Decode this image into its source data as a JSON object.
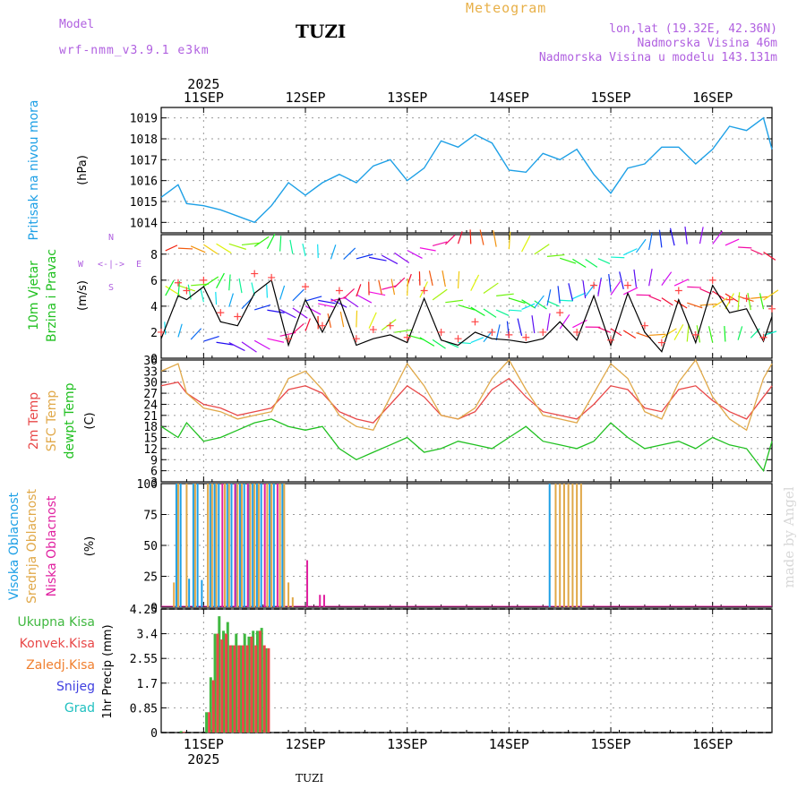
{
  "header": {
    "model_label": "Model",
    "model_name": "wrf-nmm_v3.9.1 e3km",
    "station": "TUZI",
    "product": "Meteogram",
    "coords": "lon,lat (19.32E, 42.36N)",
    "elevation": "Nadmorska Visina 46m",
    "model_elevation": "Nadmorska Visina u modelu 143.131m",
    "footer_station": "TUZI",
    "watermark": "made by Angel"
  },
  "colors": {
    "pressure": "#1ea0e6",
    "wind_speed": "#000000",
    "gust_marker": "#ff4444",
    "t2m": "#e84848",
    "tsfc": "#e0a848",
    "dewpt": "#20c020",
    "cloud_high": "#1ea0e6",
    "cloud_mid": "#e0a848",
    "cloud_low": "#e020a0",
    "precip_total": "#40b840",
    "precip_conv": "#e84848",
    "freezing": "#f08030",
    "snow": "#4040e0",
    "hail": "#20c0c0",
    "title_purple": "#b060e0"
  },
  "chart_data": [
    {
      "type": "line",
      "name": "pressure",
      "ylabel": "Pritisak na nivou mora",
      "unit": "(hPa)",
      "ylim": [
        1013.5,
        1019.5
      ],
      "yticks": [
        1014,
        1015,
        1016,
        1017,
        1018,
        1019
      ],
      "xticks": [
        "11SEP",
        "12SEP",
        "13SEP",
        "14SEP",
        "15SEP",
        "16SEP"
      ],
      "top_year": "2025",
      "x": [
        0,
        4,
        6,
        10,
        14,
        18,
        22,
        26,
        30,
        34,
        38,
        42,
        46,
        50,
        54,
        58,
        62,
        66,
        70,
        74,
        78,
        82,
        86,
        90,
        94,
        98,
        102,
        106,
        110,
        114,
        118,
        122,
        126,
        130,
        134,
        138,
        142,
        144
      ],
      "values": [
        1015.2,
        1015.8,
        1014.9,
        1014.8,
        1014.6,
        1014.3,
        1014.0,
        1014.8,
        1015.9,
        1015.3,
        1015.9,
        1016.3,
        1015.9,
        1016.7,
        1017.0,
        1016.0,
        1016.6,
        1017.9,
        1017.6,
        1018.2,
        1017.8,
        1016.5,
        1016.4,
        1017.3,
        1017.0,
        1017.5,
        1016.3,
        1015.4,
        1016.6,
        1016.8,
        1017.6,
        1017.6,
        1016.8,
        1017.5,
        1018.6,
        1018.4,
        1019.0,
        1017.5
      ]
    },
    {
      "type": "line",
      "name": "wind",
      "ylabel": "10m Vjetar Brzina i Pravac",
      "unit": "(m/s)",
      "compass": "N",
      "compass_w": "W",
      "compass_e": "E",
      "compass_s": "S",
      "arrows": "<-|->",
      "ylim": [
        0,
        9.5
      ],
      "yticks": [
        0,
        2,
        4,
        6,
        8
      ],
      "x": [
        0,
        4,
        6,
        10,
        14,
        18,
        22,
        26,
        30,
        34,
        38,
        42,
        46,
        50,
        54,
        58,
        62,
        66,
        70,
        74,
        78,
        82,
        86,
        90,
        94,
        98,
        102,
        106,
        110,
        114,
        118,
        122,
        126,
        130,
        134,
        138,
        142,
        144
      ],
      "values": [
        1.5,
        4.8,
        4.5,
        5.5,
        2.8,
        2.5,
        5.0,
        6.0,
        1.0,
        4.5,
        2.0,
        4.6,
        1.0,
        1.5,
        1.8,
        1.2,
        4.6,
        1.4,
        1.0,
        2.0,
        1.5,
        1.4,
        1.2,
        1.5,
        2.8,
        1.4,
        4.8,
        1.0,
        5.0,
        2.0,
        0.5,
        4.5,
        1.2,
        5.6,
        3.5,
        3.8,
        1.3,
        3.2
      ],
      "gusts": [
        2.0,
        5.8,
        5.2,
        6.0,
        3.5,
        3.2,
        6.5,
        6.2,
        1.5,
        5.5,
        2.5,
        5.2,
        1.5,
        2.2,
        2.5,
        1.6,
        5.2,
        2.0,
        1.5,
        2.8,
        2.0,
        1.8,
        1.6,
        2.0,
        3.5,
        2.0,
        5.6,
        1.4,
        5.6,
        2.5,
        1.2,
        5.2,
        1.8,
        6.0,
        4.5,
        4.6,
        1.6,
        3.8
      ]
    },
    {
      "type": "line",
      "name": "temperature",
      "ylabel_1": "2m Temp",
      "ylabel_2": "SFC Temp",
      "ylabel_3": "dewpt Temp",
      "unit": "(C)",
      "ylim": [
        3,
        36
      ],
      "yticks": [
        3,
        6,
        9,
        12,
        15,
        18,
        21,
        24,
        27,
        30,
        33,
        36
      ],
      "x": [
        0,
        4,
        6,
        10,
        14,
        18,
        22,
        26,
        30,
        34,
        38,
        42,
        46,
        50,
        54,
        58,
        62,
        66,
        70,
        74,
        78,
        82,
        86,
        90,
        94,
        98,
        102,
        106,
        110,
        114,
        118,
        122,
        126,
        130,
        134,
        138,
        142,
        144
      ],
      "series": [
        {
          "name": "2m Temp",
          "values": [
            29,
            30,
            27,
            24,
            23,
            21,
            22,
            23,
            28,
            29,
            27,
            22,
            20,
            19,
            24,
            29,
            26,
            21,
            20,
            22,
            28,
            31,
            26,
            22,
            21,
            20,
            24,
            29,
            28,
            23,
            22,
            28,
            29,
            25,
            22,
            20,
            26,
            29
          ]
        },
        {
          "name": "SFC Temp",
          "values": [
            33,
            35,
            27,
            23,
            22,
            20,
            21,
            22,
            31,
            33,
            28,
            21,
            18,
            17,
            26,
            35,
            29,
            21,
            20,
            23,
            31,
            36,
            28,
            21,
            20,
            19,
            27,
            35,
            31,
            22,
            20,
            30,
            36,
            26,
            20,
            17,
            31,
            35
          ]
        },
        {
          "name": "dewpt Temp",
          "values": [
            18,
            15,
            19,
            14,
            15,
            17,
            19,
            20,
            18,
            17,
            18,
            12,
            9,
            11,
            13,
            15,
            11,
            12,
            14,
            13,
            12,
            15,
            18,
            14,
            13,
            12,
            14,
            19,
            15,
            12,
            13,
            14,
            12,
            15,
            13,
            12,
            6,
            14
          ]
        }
      ]
    },
    {
      "type": "bar",
      "name": "clouds",
      "ylabel_1": "Visoka Oblacnost",
      "ylabel_2": "Srednja Oblacnost",
      "ylabel_3": "Niska Oblacnost",
      "unit": "(%)",
      "ylim": [
        0,
        100
      ],
      "yticks": [
        0,
        25,
        50,
        75,
        100
      ],
      "x": [
        3,
        4,
        5,
        6,
        7,
        8,
        9,
        10,
        11,
        12,
        13,
        14,
        15,
        16,
        17,
        18,
        19,
        20,
        21,
        22,
        23,
        24,
        25,
        26,
        27,
        28,
        29,
        30,
        31,
        34,
        37,
        38,
        92,
        93,
        94,
        95,
        96,
        97,
        98,
        99
      ],
      "series": [
        {
          "name": "Visoka Oblacnost",
          "values": [
            0,
            100,
            100,
            0,
            23,
            100,
            100,
            22,
            0,
            100,
            100,
            100,
            0,
            100,
            100,
            100,
            100,
            100,
            100,
            100,
            100,
            100,
            0,
            100,
            100,
            0,
            100,
            0,
            0,
            0,
            0,
            0,
            100,
            0,
            0,
            0,
            0,
            0,
            0,
            0
          ]
        },
        {
          "name": "Srednja Oblacnost",
          "values": [
            20,
            100,
            0,
            100,
            0,
            100,
            0,
            0,
            100,
            100,
            100,
            0,
            100,
            100,
            0,
            100,
            100,
            0,
            100,
            100,
            100,
            0,
            100,
            100,
            0,
            100,
            100,
            20,
            8,
            0,
            0,
            0,
            0,
            100,
            100,
            100,
            100,
            100,
            100,
            100
          ]
        },
        {
          "name": "Niska Oblacnost",
          "values": [
            0,
            0,
            0,
            0,
            0,
            0,
            0,
            0,
            0,
            0,
            0,
            100,
            0,
            0,
            100,
            0,
            0,
            100,
            0,
            0,
            0,
            100,
            0,
            0,
            100,
            0,
            0,
            0,
            0,
            38,
            10,
            10,
            0,
            0,
            0,
            0,
            0,
            0,
            0,
            0
          ]
        }
      ]
    },
    {
      "type": "bar",
      "name": "precip",
      "ylabel": "1hr Precip (mm)",
      "legend": [
        "Ukupna Kisa",
        "Konvek.Kisa",
        "Zaledj.Kisa",
        "Snijeg",
        "Grad"
      ],
      "ylim": [
        0,
        4.25
      ],
      "yticks": [
        "0",
        "0.85",
        "1.7",
        "2.55",
        "3.4",
        "4.25"
      ],
      "xticks": [
        "11SEP",
        "12SEP",
        "13SEP",
        "14SEP",
        "15SEP",
        "16SEP"
      ],
      "bottom_year": "2025",
      "x": [
        5,
        11,
        12,
        13,
        14,
        15,
        16,
        17,
        18,
        19,
        20,
        21,
        22,
        23,
        24,
        25
      ],
      "series": [
        {
          "name": "Ukupna Kisa",
          "values": [
            0.05,
            0.7,
            1.9,
            3.4,
            4.0,
            3.5,
            3.8,
            3.0,
            3.4,
            3.0,
            3.4,
            3.3,
            3.5,
            3.5,
            3.6,
            2.9
          ]
        },
        {
          "name": "Konvek.Kisa",
          "values": [
            0.03,
            0.7,
            1.8,
            3.4,
            3.2,
            3.4,
            3.0,
            3.0,
            3.0,
            3.0,
            3.0,
            3.3,
            3.0,
            3.5,
            3.0,
            2.9
          ]
        }
      ]
    }
  ]
}
